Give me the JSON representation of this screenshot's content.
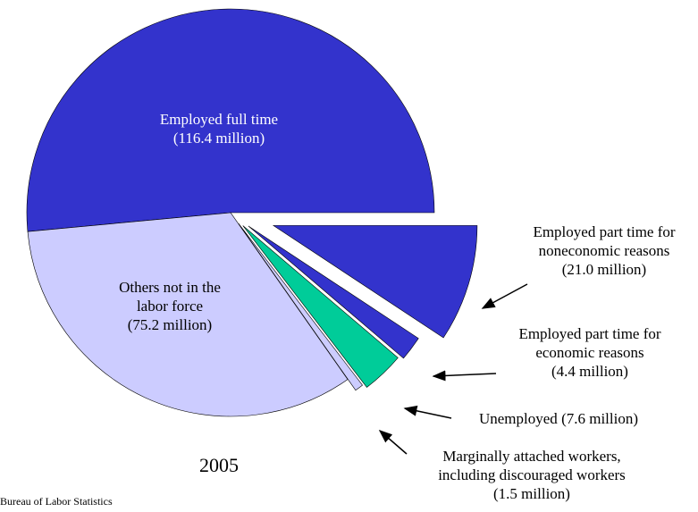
{
  "chart_data": {
    "type": "pie",
    "title": "2005",
    "source": "Bureau of Labor Statistics",
    "categories": [
      "Employed full time",
      "Others not in the labor force",
      "Marginally attached workers, including discouraged workers",
      "Unemployed",
      "Employed part time for economic reasons",
      "Employed part time for noneconomic reasons"
    ],
    "values": [
      116.4,
      75.2,
      1.5,
      7.6,
      4.4,
      21.0
    ],
    "value_labels": [
      "(116.4 million)",
      "(75.2 million)",
      "(1.5 million)",
      "(7.6 million)",
      "(4.4 million)",
      "(21.0 million)"
    ],
    "colors": [
      "#3333cc",
      "#ccccff",
      "#ccccff",
      "#00cc99",
      "#3333cc",
      "#3333cc"
    ]
  }
}
